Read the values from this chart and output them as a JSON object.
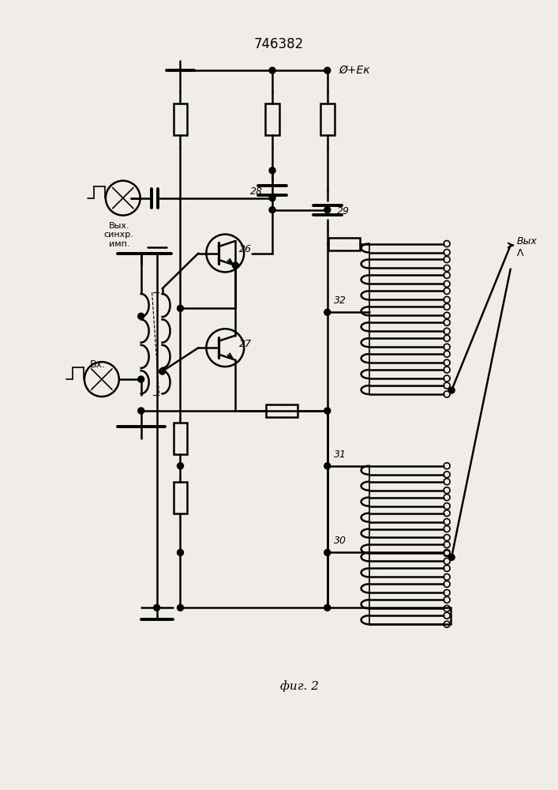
{
  "title": "746382",
  "title_fontsize": 12,
  "fig_caption": "фиг. 2",
  "background_color": "#f0ede8",
  "line_color": "#000000",
  "text_color": "#000000",
  "label_vyx_synhr": "Вых.\nсинхр.\nимп.",
  "label_vx": "Вх.",
  "label_vyx_arrow": "Вых",
  "label_lambda": "Λ",
  "label_ek": "Ø+Eк",
  "label_26": "26",
  "label_27": "27",
  "label_28": "28",
  "label_29": "29",
  "label_30": "30",
  "label_31": "31",
  "label_32": "32"
}
